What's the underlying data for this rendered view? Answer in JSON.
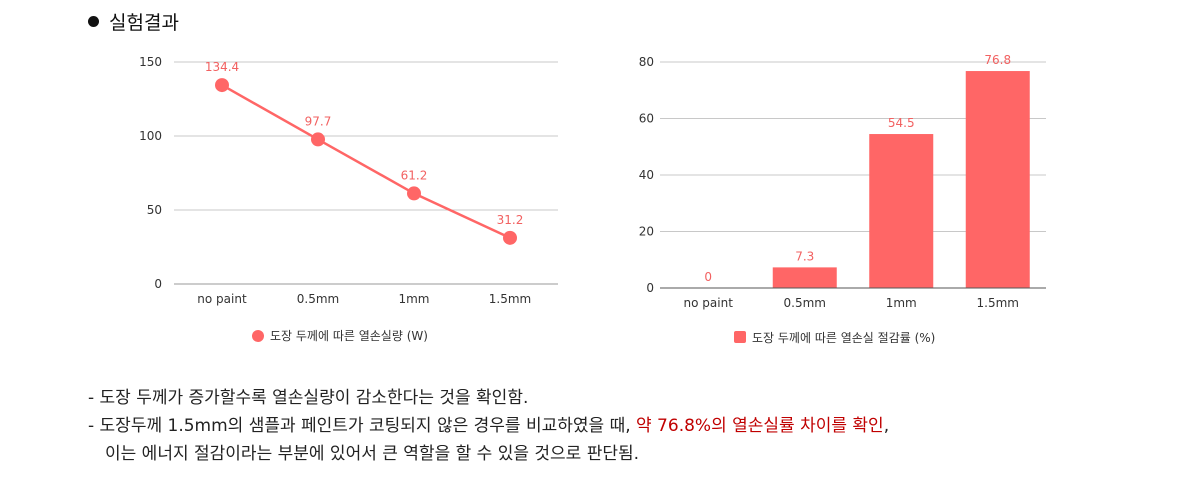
{
  "section": {
    "title": "실험결과"
  },
  "colors": {
    "series": "#ff6666",
    "label": "#f26161",
    "axis": "#999999",
    "grid": "#c8c8c8"
  },
  "chart_data": [
    {
      "type": "line",
      "categories": [
        "no paint",
        "0.5mm",
        "1mm",
        "1.5mm"
      ],
      "series": [
        {
          "name": "도장 두께에 따른 열손실량 (W)",
          "values": [
            134.4,
            97.7,
            61.2,
            31.2
          ]
        }
      ],
      "data_labels": [
        "134.4",
        "97.7",
        "61.2",
        "31.2"
      ],
      "y_ticks": [
        0,
        50,
        100,
        150
      ],
      "ylim": [
        0,
        150
      ],
      "grid": true,
      "legend": "bottom"
    },
    {
      "type": "bar",
      "categories": [
        "no paint",
        "0.5mm",
        "1mm",
        "1.5mm"
      ],
      "series": [
        {
          "name": "도장 두께에 따른 열손실 절감률 (%)",
          "values": [
            0,
            7.3,
            54.5,
            76.8
          ]
        }
      ],
      "data_labels": [
        "0",
        "7.3",
        "54.5",
        "76.8"
      ],
      "y_ticks": [
        0,
        20,
        40,
        60,
        80
      ],
      "ylim": [
        0,
        80
      ],
      "grid": true,
      "legend": "bottom"
    }
  ],
  "notes": {
    "line1": "- 도장 두께가 증가할수록 열손실량이 감소한다는 것을 확인함.",
    "line2_prefix": "- 도장두께 1.5mm의 샘플과 페인트가 코팅되지 않은 경우를 비교하였을 때, ",
    "line2_highlight": "약 76.8%의 열손실률 차이를 확인",
    "line2_suffix": ",",
    "line3": "이는 에너지 절감이라는 부분에 있어서 큰 역할을 할 수 있을 것으로 판단됨."
  }
}
